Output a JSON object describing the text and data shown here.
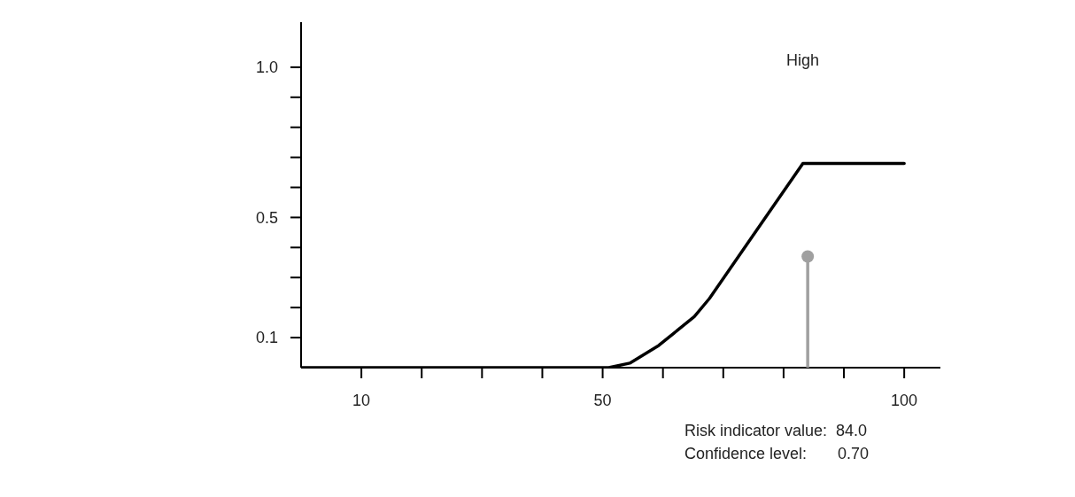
{
  "chart_data": {
    "type": "line",
    "xlim": [
      0,
      106
    ],
    "ylim": [
      0,
      1.15
    ],
    "xticks": [
      {
        "value": 10,
        "label": "10"
      },
      {
        "value": 20,
        "label": null
      },
      {
        "value": 30,
        "label": null
      },
      {
        "value": 40,
        "label": null
      },
      {
        "value": 50,
        "label": "50"
      },
      {
        "value": 60,
        "label": null
      },
      {
        "value": 70,
        "label": null
      },
      {
        "value": 80,
        "label": null
      },
      {
        "value": 90,
        "label": null
      },
      {
        "value": 100,
        "label": "100"
      }
    ],
    "yticks": [
      {
        "value": 0.1,
        "label": "0.1"
      },
      {
        "value": 0.2,
        "label": null
      },
      {
        "value": 0.3,
        "label": null
      },
      {
        "value": 0.4,
        "label": null
      },
      {
        "value": 0.5,
        "label": "0.5"
      },
      {
        "value": 0.6,
        "label": null
      },
      {
        "value": 0.7,
        "label": null
      },
      {
        "value": 0.8,
        "label": null
      },
      {
        "value": 0.9,
        "label": null
      },
      {
        "value": 1.0,
        "label": "1.0"
      }
    ],
    "series": [
      {
        "color": "#000000",
        "x": [
          0,
          51,
          54.5,
          59.3,
          65.2,
          67.7,
          83.2,
          100
        ],
        "values": [
          0,
          0,
          0.015,
          0.074,
          0.17,
          0.23,
          0.68,
          0.68
        ]
      },
      {
        "type": "lollipop",
        "color": "#a0a0a0",
        "x": [
          84
        ],
        "values": [
          0.37
        ]
      }
    ],
    "annotations": [
      "High",
      "Risk indicator value:  84.0",
      "Confidence level:       0.70"
    ]
  }
}
